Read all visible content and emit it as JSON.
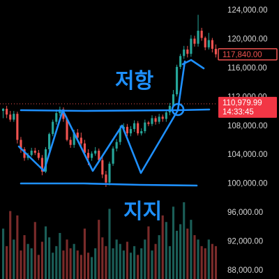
{
  "chart_data": {
    "type": "candlestick",
    "y_axis": {
      "ticks": [
        "124,000.00",
        "120,000.00",
        "116,000.00",
        "112,000.00",
        "108,000.00",
        "104,000.00",
        "100,000.00",
        "96,000.00",
        "92,000.00",
        "88,000.00"
      ],
      "tick_values": [
        124000,
        120000,
        116000,
        112000,
        108000,
        104000,
        100000,
        96000,
        92000,
        88000
      ],
      "range": [
        87000,
        125500
      ]
    },
    "price_tags": [
      {
        "name": "last-price",
        "value": 117840,
        "label": "117,840.00",
        "color": "#ef5350",
        "style": "outline"
      },
      {
        "name": "current-price",
        "value": 110979.99,
        "label": "110,979.99",
        "sublabel": "14:33:45",
        "color": "#f23645",
        "style": "filled"
      }
    ],
    "colors": {
      "up": "#26a69a",
      "down": "#ef5350",
      "annotation": "#1e90ff"
    },
    "annotations": {
      "resistance_label": "저항",
      "support_label": "지지",
      "resistance_level": 110600,
      "support_level": 99700,
      "pattern": "W",
      "breakout_arrow": true
    },
    "candles": [
      [
        110000,
        110300,
        109000,
        110400
      ],
      [
        110300,
        109500,
        109000,
        110700
      ],
      [
        109500,
        108800,
        108500,
        110000
      ],
      [
        108800,
        109600,
        108500,
        110000
      ],
      [
        109600,
        106000,
        105500,
        109900
      ],
      [
        106000,
        104700,
        104200,
        106400
      ],
      [
        104700,
        103500,
        103100,
        105000
      ],
      [
        103500,
        103900,
        103200,
        104200
      ],
      [
        103900,
        104500,
        103700,
        104900
      ],
      [
        104500,
        104200,
        103900,
        104900
      ],
      [
        104200,
        103500,
        103200,
        104600
      ],
      [
        103500,
        101600,
        101100,
        103900
      ],
      [
        101600,
        104700,
        101400,
        105000
      ],
      [
        104700,
        106800,
        104400,
        107000
      ],
      [
        106800,
        108500,
        106500,
        108800
      ],
      [
        108500,
        109700,
        108100,
        110200
      ],
      [
        109700,
        110200,
        109300,
        110600
      ],
      [
        110200,
        108900,
        108500,
        110500
      ],
      [
        108900,
        106000,
        105800,
        109200
      ],
      [
        106000,
        105300,
        104900,
        106400
      ],
      [
        105300,
        107000,
        104900,
        107400
      ],
      [
        107000,
        106300,
        105900,
        107500
      ],
      [
        106300,
        105500,
        105100,
        107000
      ],
      [
        105500,
        104200,
        103800,
        106000
      ],
      [
        104200,
        103500,
        102500,
        104700
      ],
      [
        103500,
        104100,
        103100,
        104400
      ],
      [
        104100,
        104500,
        103800,
        105000
      ],
      [
        104500,
        103200,
        102900,
        104800
      ],
      [
        103200,
        101200,
        100700,
        103600
      ],
      [
        101200,
        100100,
        99500,
        101700
      ],
      [
        100100,
        102700,
        99700,
        103000
      ],
      [
        102700,
        104800,
        102400,
        105100
      ],
      [
        104800,
        105700,
        104400,
        106100
      ],
      [
        105700,
        107500,
        105300,
        108000
      ],
      [
        107500,
        107800,
        107100,
        108300
      ],
      [
        107800,
        106900,
        106500,
        108200
      ],
      [
        106900,
        107500,
        106500,
        107900
      ],
      [
        107500,
        108300,
        107100,
        108700
      ],
      [
        108300,
        106900,
        106600,
        108600
      ],
      [
        106900,
        107200,
        106600,
        107600
      ],
      [
        107200,
        108400,
        106900,
        108800
      ],
      [
        108400,
        108200,
        107900,
        108600
      ],
      [
        108200,
        109000,
        107900,
        109400
      ],
      [
        109000,
        108500,
        108100,
        109300
      ],
      [
        108500,
        109200,
        108200,
        109600
      ],
      [
        109200,
        108900,
        108500,
        109500
      ],
      [
        108900,
        109800,
        108500,
        110200
      ],
      [
        109800,
        110700,
        109400,
        111100
      ],
      [
        110700,
        112300,
        110500,
        112900
      ],
      [
        112300,
        116100,
        112000,
        116400
      ],
      [
        116100,
        117600,
        115800,
        117900
      ],
      [
        117600,
        118500,
        117200,
        119000
      ],
      [
        118500,
        117900,
        117400,
        119000
      ],
      [
        117900,
        120000,
        117500,
        120500
      ],
      [
        120000,
        119300,
        118900,
        120400
      ],
      [
        119300,
        121100,
        118900,
        123300
      ],
      [
        121100,
        120100,
        119700,
        121500
      ],
      [
        120100,
        118800,
        118400,
        120300
      ],
      [
        118800,
        119800,
        118500,
        120800
      ],
      [
        119800,
        118600,
        118100,
        120100
      ],
      [
        118600,
        117840,
        117400,
        119200
      ]
    ],
    "volumes": [
      46,
      30,
      62,
      36,
      58,
      26,
      40,
      32,
      28,
      52,
      22,
      34,
      48,
      38,
      24,
      30,
      42,
      26,
      36,
      28,
      32,
      26,
      22,
      46,
      24,
      20,
      28,
      54,
      38,
      30,
      64,
      28,
      36,
      32,
      26,
      34,
      24,
      30,
      22,
      28,
      36,
      48,
      26,
      32,
      40,
      58,
      52,
      30,
      66,
      44,
      50,
      70,
      46,
      54,
      40,
      36,
      30,
      28,
      36,
      32,
      30
    ]
  }
}
